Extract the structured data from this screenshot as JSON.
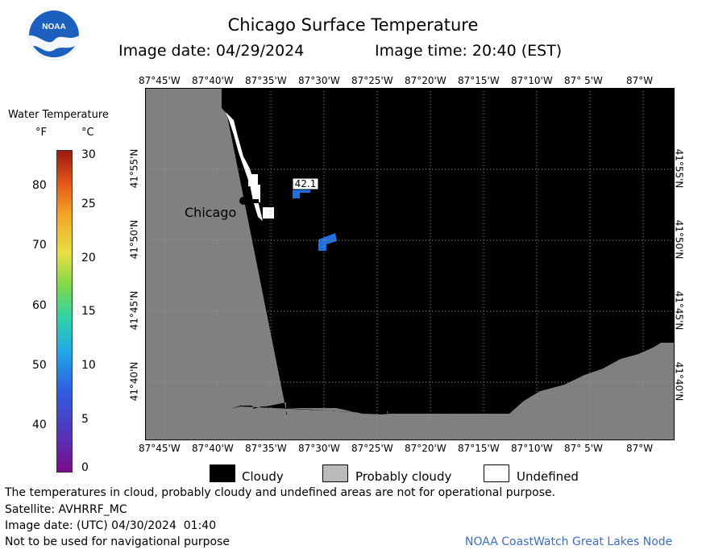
{
  "header": {
    "title": "Chicago Surface Temperature",
    "image_date": "Image date: 04/29/2024",
    "image_time": "Image time: 20:40 (EST)"
  },
  "logo": {
    "text": "NOAA"
  },
  "colorbar": {
    "title": "Water Temperature",
    "unit_f": "°F",
    "unit_c": "°C",
    "f_ticks": [
      "80",
      "70",
      "60",
      "50",
      "40"
    ],
    "c_ticks": [
      "30",
      "25",
      "20",
      "15",
      "10",
      "5",
      "0"
    ]
  },
  "map": {
    "lon_labels": [
      "87°45'W",
      "87°40'W",
      "87°35'W",
      "87°30'W",
      "87°25'W",
      "87°20'W",
      "87°15'W",
      "87°10'W",
      "87° 5'W",
      "87°W"
    ],
    "lat_labels": [
      "41°55'N",
      "41°50'N",
      "41°45'N",
      "41°40'N"
    ],
    "city_label": "Chicago",
    "temp_reading": "42.1",
    "colors": {
      "cloudy": "#000000",
      "probably_cloudy": "#808080",
      "undefined": "#ffffff",
      "water_5c": "#1f6fe0"
    }
  },
  "legend": {
    "cloudy": "Cloudy",
    "probably_cloudy": "Probably cloudy",
    "undefined": "Undefined"
  },
  "footer": {
    "note": "The temperatures in cloud, probably cloudy and undefined areas are not for operational purpose.",
    "satellite": "Satellite: AVHRRF_MC",
    "utc_date": "Image date: (UTC) 04/30/2024  01:40",
    "nav_warning": "Not to be used for navigational purpose",
    "credit": "NOAA CoastWatch Great Lakes Node"
  }
}
